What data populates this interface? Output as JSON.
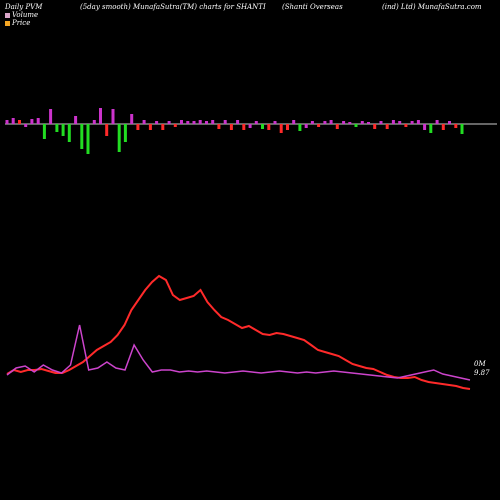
{
  "header": {
    "left": "Daily PVM",
    "mid1": "(5day smooth) MunafaSutra(TM) charts for SHANTI",
    "mid2": "(Shanti   Overseas",
    "right": "(ind) Ltd) MunafaSutra.com"
  },
  "legend": [
    {
      "label": "Volume",
      "color": "#d9a5c8"
    },
    {
      "label": "Price",
      "color": "#f5a623"
    }
  ],
  "end_labels": {
    "volume": "0M",
    "price": "9.87"
  },
  "colors": {
    "volume_line": "#cc44cc",
    "price_line": "#ff2a2a",
    "bar_up": "#cc33cc",
    "bar_down": "#ff2a2a",
    "bar_green": "#22dd22",
    "zero_line": "#cccccc"
  },
  "chart_data": {
    "type": "bar+line",
    "volume_bars": [
      {
        "v": 4,
        "c": "up"
      },
      {
        "v": 6,
        "c": "up"
      },
      {
        "v": 4,
        "c": "down"
      },
      {
        "v": -3,
        "c": "up"
      },
      {
        "v": 5,
        "c": "up"
      },
      {
        "v": 6,
        "c": "up"
      },
      {
        "v": -15,
        "c": "green"
      },
      {
        "v": 15,
        "c": "up"
      },
      {
        "v": -8,
        "c": "green"
      },
      {
        "v": -12,
        "c": "green"
      },
      {
        "v": -18,
        "c": "green"
      },
      {
        "v": 8,
        "c": "up"
      },
      {
        "v": -25,
        "c": "green"
      },
      {
        "v": -30,
        "c": "green"
      },
      {
        "v": 4,
        "c": "up"
      },
      {
        "v": 16,
        "c": "up"
      },
      {
        "v": -12,
        "c": "down"
      },
      {
        "v": 15,
        "c": "up"
      },
      {
        "v": -28,
        "c": "green"
      },
      {
        "v": -18,
        "c": "green"
      },
      {
        "v": 10,
        "c": "up"
      },
      {
        "v": -6,
        "c": "down"
      },
      {
        "v": 4,
        "c": "up"
      },
      {
        "v": -6,
        "c": "down"
      },
      {
        "v": 3,
        "c": "up"
      },
      {
        "v": -6,
        "c": "down"
      },
      {
        "v": 3,
        "c": "up"
      },
      {
        "v": -3,
        "c": "down"
      },
      {
        "v": 4,
        "c": "up"
      },
      {
        "v": 3,
        "c": "up"
      },
      {
        "v": 3,
        "c": "up"
      },
      {
        "v": 4,
        "c": "up"
      },
      {
        "v": 3,
        "c": "up"
      },
      {
        "v": 4,
        "c": "up"
      },
      {
        "v": -5,
        "c": "down"
      },
      {
        "v": 4,
        "c": "up"
      },
      {
        "v": -6,
        "c": "down"
      },
      {
        "v": 4,
        "c": "up"
      },
      {
        "v": -6,
        "c": "down"
      },
      {
        "v": -4,
        "c": "up"
      },
      {
        "v": 3,
        "c": "up"
      },
      {
        "v": -5,
        "c": "green"
      },
      {
        "v": -6,
        "c": "down"
      },
      {
        "v": 3,
        "c": "up"
      },
      {
        "v": -9,
        "c": "down"
      },
      {
        "v": -6,
        "c": "down"
      },
      {
        "v": 4,
        "c": "up"
      },
      {
        "v": -7,
        "c": "green"
      },
      {
        "v": -4,
        "c": "up"
      },
      {
        "v": 3,
        "c": "up"
      },
      {
        "v": -3,
        "c": "down"
      },
      {
        "v": 3,
        "c": "up"
      },
      {
        "v": 4,
        "c": "up"
      },
      {
        "v": -5,
        "c": "down"
      },
      {
        "v": 3,
        "c": "up"
      },
      {
        "v": 2,
        "c": "up"
      },
      {
        "v": -3,
        "c": "green"
      },
      {
        "v": 3,
        "c": "up"
      },
      {
        "v": 2,
        "c": "up"
      },
      {
        "v": -5,
        "c": "down"
      },
      {
        "v": 3,
        "c": "up"
      },
      {
        "v": -5,
        "c": "down"
      },
      {
        "v": 4,
        "c": "up"
      },
      {
        "v": 3,
        "c": "up"
      },
      {
        "v": -3,
        "c": "down"
      },
      {
        "v": 3,
        "c": "up"
      },
      {
        "v": 4,
        "c": "up"
      },
      {
        "v": -6,
        "c": "up"
      },
      {
        "v": -9,
        "c": "green"
      },
      {
        "v": 4,
        "c": "up"
      },
      {
        "v": -6,
        "c": "down"
      },
      {
        "v": 3,
        "c": "up"
      },
      {
        "v": -4,
        "c": "down"
      },
      {
        "v": -10,
        "c": "green"
      }
    ],
    "price_line": [
      374,
      370,
      372,
      370,
      370,
      369,
      371,
      373,
      373,
      370,
      366,
      362,
      356,
      350,
      346,
      342,
      335,
      325,
      310,
      300,
      290,
      282,
      276,
      280,
      295,
      300,
      298,
      296,
      290,
      302,
      310,
      317,
      320,
      324,
      328,
      326,
      330,
      334,
      335,
      333,
      334,
      336,
      338,
      340,
      345,
      350,
      352,
      354,
      356,
      360,
      364,
      366,
      368,
      369,
      372,
      375,
      377,
      378,
      378,
      377,
      380,
      382,
      383,
      384,
      385,
      386,
      388,
      389
    ],
    "volume_line": [
      375,
      368,
      366,
      372,
      365,
      370,
      373,
      365,
      325,
      370,
      368,
      362,
      368,
      370,
      345,
      360,
      372,
      370,
      370,
      372,
      371,
      372,
      371,
      372,
      373,
      372,
      371,
      372,
      373,
      372,
      371,
      372,
      373,
      372,
      373,
      372,
      371,
      372,
      373,
      374,
      375,
      376,
      377,
      378,
      376,
      374,
      372,
      370,
      374,
      376,
      378,
      380
    ]
  }
}
